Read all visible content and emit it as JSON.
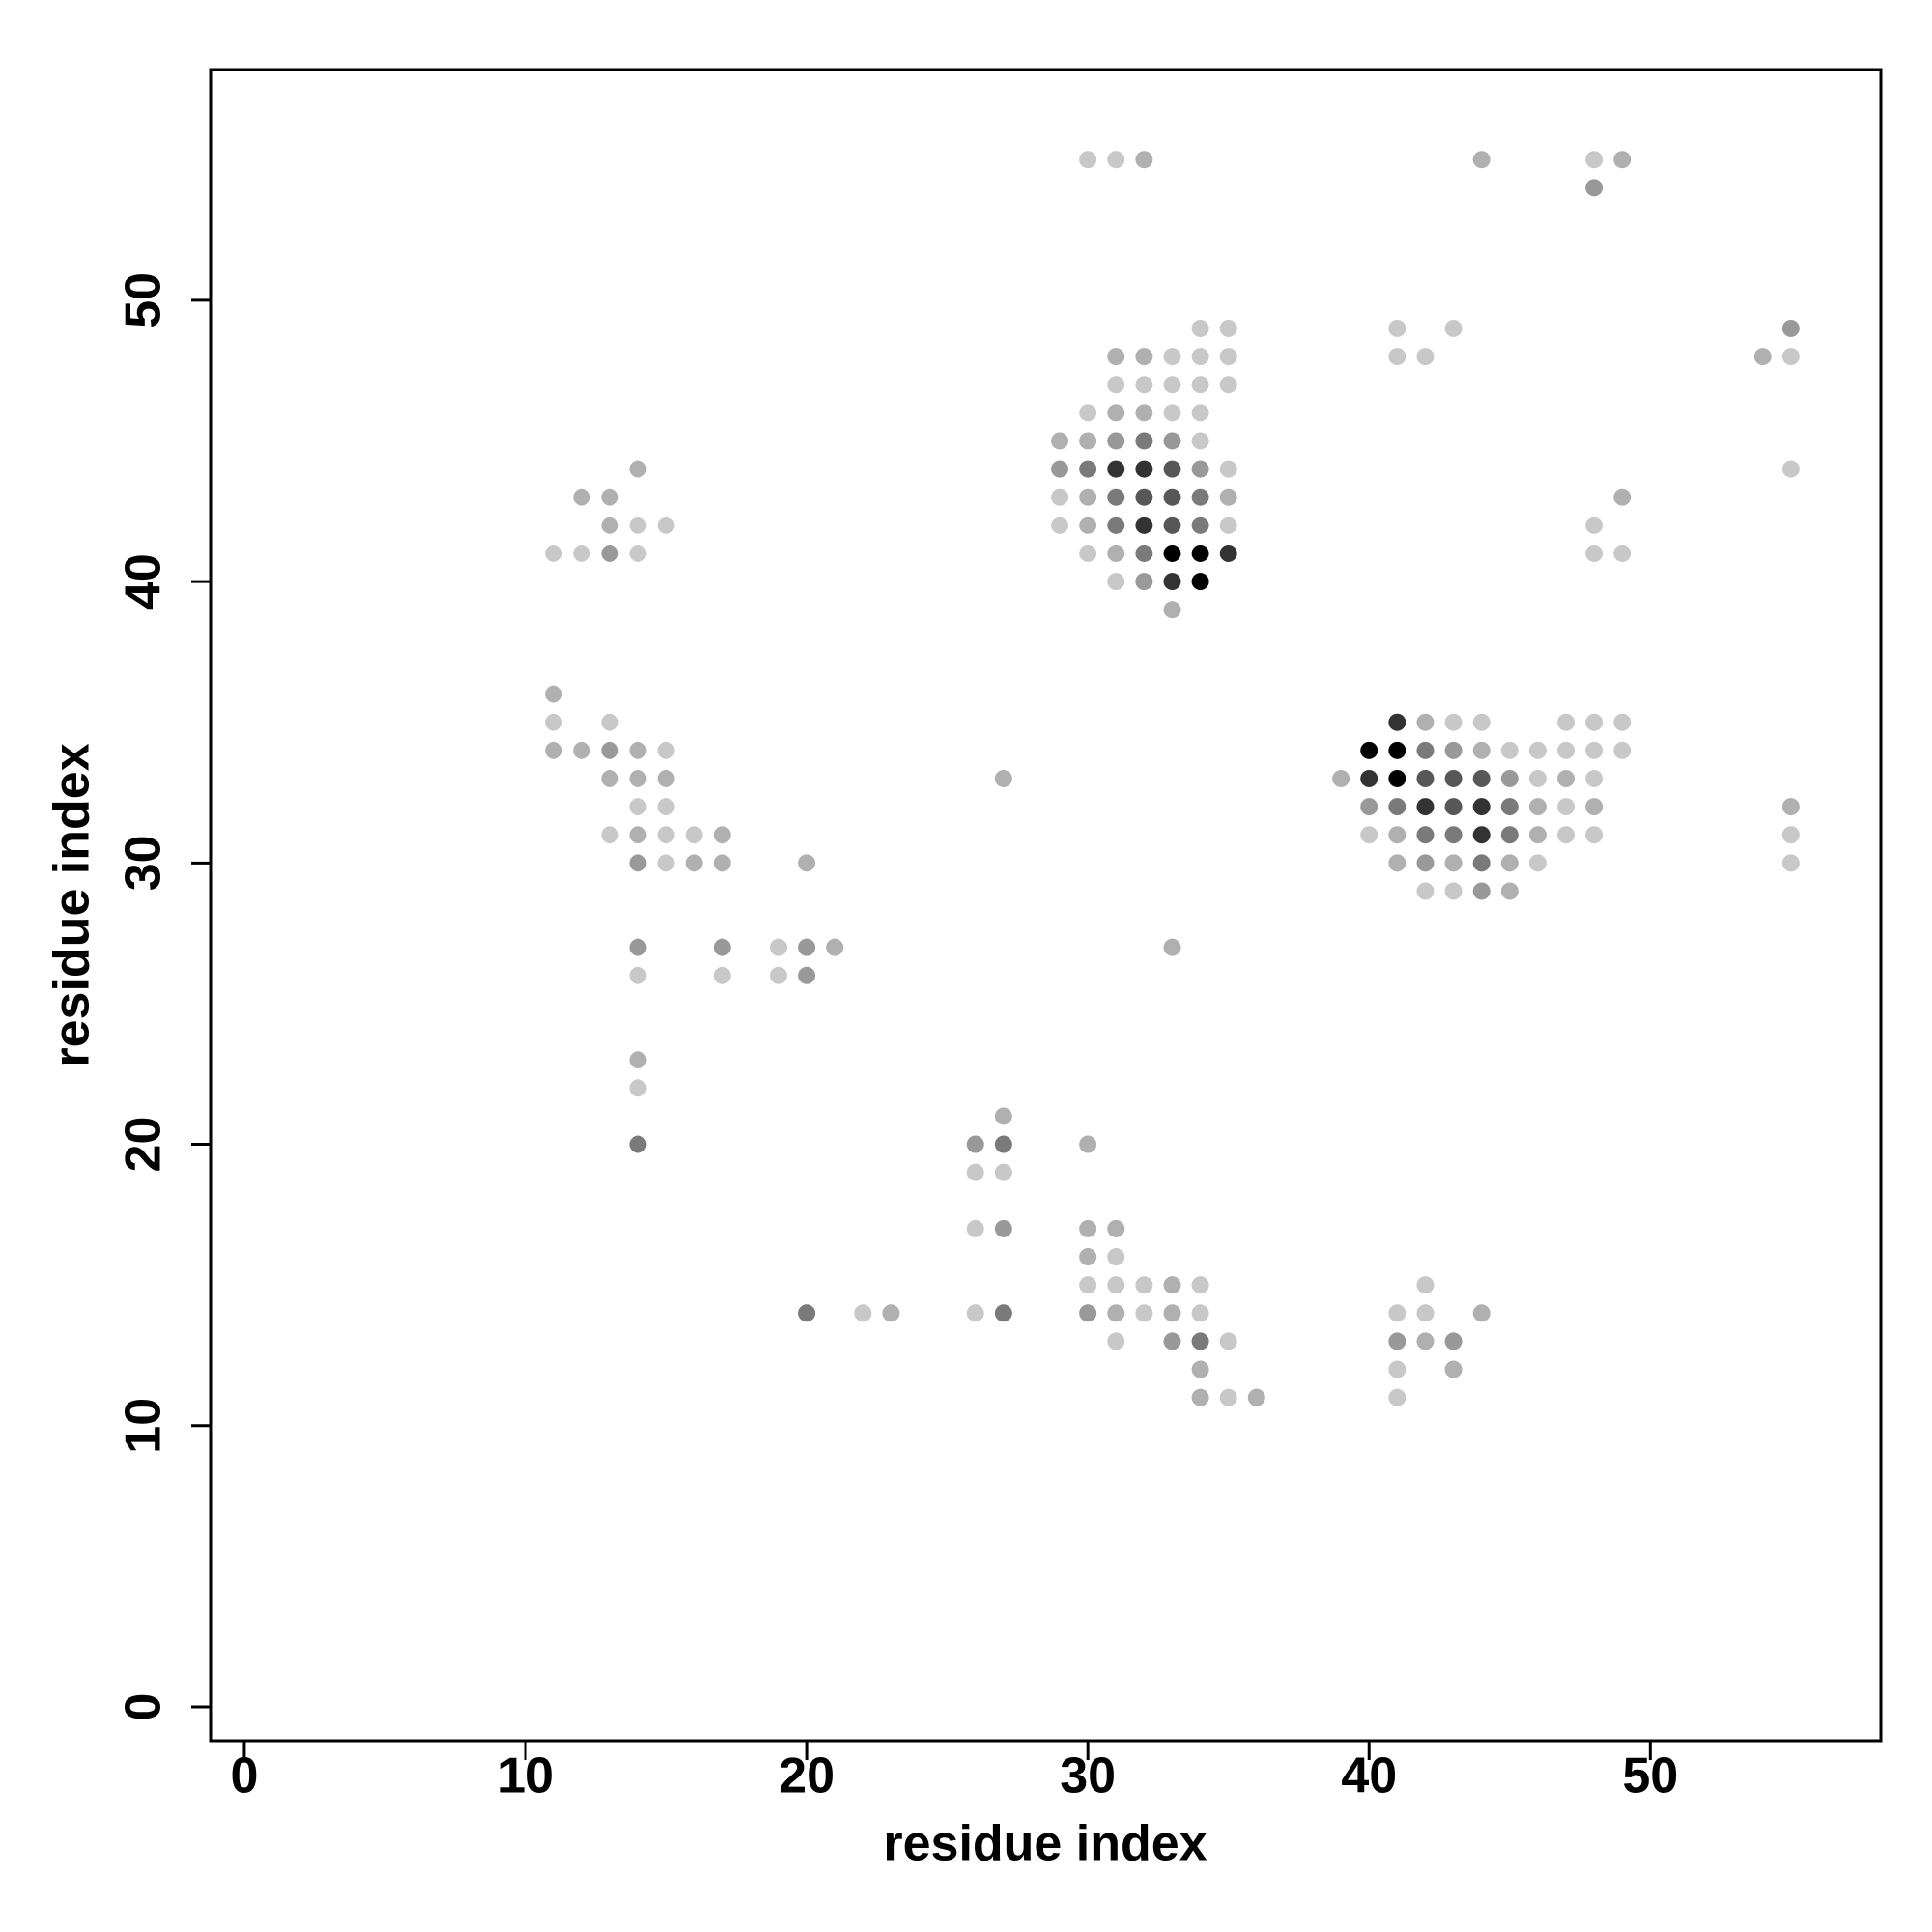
{
  "chart_data": {
    "type": "scatter",
    "xlabel": "residue index",
    "ylabel": "residue index",
    "xlim": [
      -1.2,
      58.2
    ],
    "ylim": [
      -1.2,
      58.2
    ],
    "xticks": [
      0,
      10,
      20,
      30,
      40,
      50
    ],
    "yticks": [
      0,
      10,
      20,
      30,
      40,
      50
    ],
    "x": [
      30,
      31,
      32,
      44,
      48,
      49,
      48,
      34,
      35,
      41,
      43,
      55,
      31,
      32,
      33,
      34,
      35,
      41,
      42,
      54,
      55,
      31,
      32,
      33,
      34,
      35,
      30,
      31,
      32,
      33,
      34,
      29,
      30,
      31,
      32,
      33,
      34,
      14,
      29,
      30,
      31,
      32,
      33,
      34,
      35,
      55,
      12,
      13,
      29,
      30,
      31,
      32,
      33,
      34,
      35,
      49,
      13,
      14,
      15,
      29,
      30,
      31,
      32,
      33,
      34,
      35,
      48,
      11,
      12,
      13,
      14,
      30,
      31,
      32,
      33,
      34,
      35,
      48,
      49,
      31,
      32,
      33,
      34,
      33,
      11,
      11,
      13,
      41,
      42,
      43,
      44,
      47,
      48,
      49,
      11,
      12,
      13,
      14,
      15,
      40,
      41,
      42,
      43,
      44,
      45,
      46,
      47,
      48,
      49,
      13,
      14,
      15,
      27,
      39,
      40,
      41,
      42,
      43,
      44,
      45,
      46,
      47,
      48,
      14,
      15,
      40,
      41,
      42,
      43,
      44,
      45,
      46,
      47,
      48,
      55,
      13,
      14,
      15,
      16,
      17,
      40,
      41,
      42,
      43,
      44,
      45,
      46,
      47,
      48,
      55,
      14,
      15,
      16,
      17,
      20,
      41,
      42,
      43,
      44,
      45,
      46,
      55,
      42,
      43,
      44,
      45,
      14,
      17,
      19,
      20,
      21,
      33,
      14,
      17,
      19,
      20,
      14,
      14,
      27,
      14,
      26,
      27,
      30,
      26,
      27,
      26,
      27,
      30,
      31,
      30,
      31,
      30,
      31,
      32,
      33,
      34,
      42,
      20,
      22,
      23,
      26,
      27,
      30,
      31,
      32,
      33,
      34,
      41,
      42,
      44,
      31,
      33,
      34,
      35,
      41,
      42,
      43,
      34,
      41,
      43,
      34,
      35,
      36,
      41
    ],
    "y": [
      55,
      55,
      55,
      55,
      55,
      55,
      54,
      49,
      49,
      49,
      49,
      49,
      48,
      48,
      48,
      48,
      48,
      48,
      48,
      48,
      48,
      47,
      47,
      47,
      47,
      47,
      46,
      46,
      46,
      46,
      46,
      45,
      45,
      45,
      45,
      45,
      45,
      44,
      44,
      44,
      44,
      44,
      44,
      44,
      44,
      44,
      43,
      43,
      43,
      43,
      43,
      43,
      43,
      43,
      43,
      43,
      42,
      42,
      42,
      42,
      42,
      42,
      42,
      42,
      42,
      42,
      42,
      41,
      41,
      41,
      41,
      41,
      41,
      41,
      41,
      41,
      41,
      41,
      41,
      40,
      40,
      40,
      40,
      39,
      36,
      35,
      35,
      35,
      35,
      35,
      35,
      35,
      35,
      35,
      34,
      34,
      34,
      34,
      34,
      34,
      34,
      34,
      34,
      34,
      34,
      34,
      34,
      34,
      34,
      33,
      33,
      33,
      33,
      33,
      33,
      33,
      33,
      33,
      33,
      33,
      33,
      33,
      33,
      32,
      32,
      32,
      32,
      32,
      32,
      32,
      32,
      32,
      32,
      32,
      32,
      31,
      31,
      31,
      31,
      31,
      31,
      31,
      31,
      31,
      31,
      31,
      31,
      31,
      31,
      31,
      30,
      30,
      30,
      30,
      30,
      30,
      30,
      30,
      30,
      30,
      30,
      30,
      29,
      29,
      29,
      29,
      27,
      27,
      27,
      27,
      27,
      27,
      26,
      26,
      26,
      26,
      23,
      22,
      21,
      20,
      20,
      20,
      20,
      19,
      19,
      17,
      17,
      17,
      17,
      16,
      16,
      15,
      15,
      15,
      15,
      15,
      15,
      14,
      14,
      14,
      14,
      14,
      14,
      14,
      14,
      14,
      14,
      14,
      14,
      14,
      13,
      13,
      13,
      13,
      13,
      13,
      13,
      12,
      12,
      12,
      11,
      11,
      11,
      11
    ],
    "colors": [
      "#c8c8c8",
      "#c8c8c8",
      "#b0b0b0",
      "#b0b0b0",
      "#c8c8c8",
      "#b0b0b0",
      "#999999",
      "#c8c8c8",
      "#c8c8c8",
      "#c8c8c8",
      "#c8c8c8",
      "#999999",
      "#b0b0b0",
      "#b0b0b0",
      "#c8c8c8",
      "#c8c8c8",
      "#c8c8c8",
      "#c8c8c8",
      "#c8c8c8",
      "#b0b0b0",
      "#c8c8c8",
      "#c8c8c8",
      "#c8c8c8",
      "#c8c8c8",
      "#c8c8c8",
      "#c8c8c8",
      "#c8c8c8",
      "#b0b0b0",
      "#b0b0b0",
      "#c8c8c8",
      "#c8c8c8",
      "#b0b0b0",
      "#b0b0b0",
      "#999999",
      "#7a7a7a",
      "#999999",
      "#c8c8c8",
      "#b0b0b0",
      "#999999",
      "#7a7a7a",
      "#333333",
      "#333333",
      "#575757",
      "#999999",
      "#c8c8c8",
      "#c8c8c8",
      "#b0b0b0",
      "#b0b0b0",
      "#c8c8c8",
      "#b0b0b0",
      "#7a7a7a",
      "#575757",
      "#575757",
      "#7a7a7a",
      "#b0b0b0",
      "#b0b0b0",
      "#b0b0b0",
      "#c8c8c8",
      "#c8c8c8",
      "#c8c8c8",
      "#b0b0b0",
      "#7a7a7a",
      "#333333",
      "#575757",
      "#7a7a7a",
      "#c8c8c8",
      "#c8c8c8",
      "#c8c8c8",
      "#c8c8c8",
      "#999999",
      "#c8c8c8",
      "#c8c8c8",
      "#b0b0b0",
      "#7a7a7a",
      "#000000",
      "#000000",
      "#333333",
      "#c8c8c8",
      "#c8c8c8",
      "#c8c8c8",
      "#999999",
      "#333333",
      "#000000",
      "#b0b0b0",
      "#b0b0b0",
      "#c8c8c8",
      "#c8c8c8",
      "#333333",
      "#b0b0b0",
      "#c8c8c8",
      "#c8c8c8",
      "#c8c8c8",
      "#c8c8c8",
      "#c8c8c8",
      "#b0b0b0",
      "#b0b0b0",
      "#999999",
      "#b0b0b0",
      "#c8c8c8",
      "#000000",
      "#000000",
      "#7a7a7a",
      "#999999",
      "#b0b0b0",
      "#c8c8c8",
      "#c8c8c8",
      "#c8c8c8",
      "#c8c8c8",
      "#c8c8c8",
      "#b0b0b0",
      "#b0b0b0",
      "#b0b0b0",
      "#b0b0b0",
      "#b0b0b0",
      "#333333",
      "#000000",
      "#575757",
      "#575757",
      "#575757",
      "#999999",
      "#c8c8c8",
      "#b0b0b0",
      "#c8c8c8",
      "#c8c8c8",
      "#c8c8c8",
      "#999999",
      "#7a7a7a",
      "#333333",
      "#575757",
      "#333333",
      "#7a7a7a",
      "#b0b0b0",
      "#c8c8c8",
      "#b0b0b0",
      "#b0b0b0",
      "#c8c8c8",
      "#b0b0b0",
      "#c8c8c8",
      "#c8c8c8",
      "#b0b0b0",
      "#c8c8c8",
      "#b0b0b0",
      "#7a7a7a",
      "#7a7a7a",
      "#333333",
      "#7a7a7a",
      "#b0b0b0",
      "#c8c8c8",
      "#c8c8c8",
      "#c8c8c8",
      "#999999",
      "#c8c8c8",
      "#b0b0b0",
      "#b0b0b0",
      "#b0b0b0",
      "#b0b0b0",
      "#999999",
      "#b0b0b0",
      "#7a7a7a",
      "#b0b0b0",
      "#c8c8c8",
      "#c8c8c8",
      "#c8c8c8",
      "#c8c8c8",
      "#999999",
      "#b0b0b0",
      "#999999",
      "#999999",
      "#c8c8c8",
      "#999999",
      "#b0b0b0",
      "#b0b0b0",
      "#c8c8c8",
      "#c8c8c8",
      "#c8c8c8",
      "#999999",
      "#b0b0b0",
      "#c8c8c8",
      "#b0b0b0",
      "#7a7a7a",
      "#999999",
      "#7a7a7a",
      "#b0b0b0",
      "#c8c8c8",
      "#c8c8c8",
      "#c8c8c8",
      "#999999",
      "#b0b0b0",
      "#b0b0b0",
      "#b0b0b0",
      "#c8c8c8",
      "#c8c8c8",
      "#c8c8c8",
      "#c8c8c8",
      "#b0b0b0",
      "#c8c8c8",
      "#c8c8c8",
      "#7a7a7a",
      "#c8c8c8",
      "#b0b0b0",
      "#c8c8c8",
      "#7a7a7a",
      "#999999",
      "#b0b0b0",
      "#c8c8c8",
      "#b0b0b0",
      "#c8c8c8",
      "#c8c8c8",
      "#c8c8c8",
      "#b0b0b0",
      "#c8c8c8",
      "#999999",
      "#7a7a7a",
      "#c8c8c8",
      "#999999",
      "#b0b0b0",
      "#999999",
      "#b0b0b0",
      "#c8c8c8",
      "#b0b0b0",
      "#b0b0b0",
      "#c8c8c8",
      "#b0b0b0",
      "#c8c8c8"
    ]
  }
}
